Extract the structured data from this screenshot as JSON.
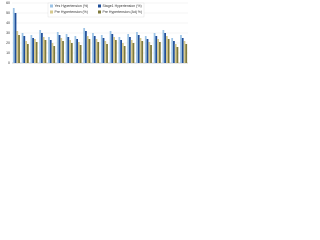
{
  "chart_data": {
    "type": "bar",
    "categories": [
      null,
      null,
      null,
      null,
      null,
      null,
      null,
      null,
      null,
      null,
      null,
      null,
      null,
      null,
      null,
      null,
      null,
      null,
      null,
      null
    ],
    "series": [
      {
        "name": "Yes Hypertension (%)",
        "color": "#9cc3e6",
        "values": [
          55,
          30,
          28,
          33,
          26,
          31,
          29,
          27,
          35,
          30,
          28,
          32,
          26,
          29,
          31,
          27,
          30,
          33,
          25,
          28
        ]
      },
      {
        "name": "Stage1 Hypertension (%)",
        "color": "#1f4e99",
        "values": [
          50,
          27,
          25,
          30,
          23,
          28,
          26,
          24,
          32,
          27,
          25,
          29,
          23,
          26,
          28,
          24,
          27,
          30,
          22,
          25
        ]
      },
      {
        "name": "Pre Hypertension (%)",
        "color": "#d6c98f",
        "values": [
          32,
          22,
          24,
          26,
          20,
          25,
          23,
          21,
          27,
          24,
          22,
          26,
          20,
          23,
          25,
          21,
          24,
          27,
          19,
          22
        ]
      },
      {
        "name": "Pre Hypertension (Adj %)",
        "color": "#7f7a3c",
        "values": [
          28,
          19,
          21,
          23,
          17,
          22,
          20,
          18,
          24,
          21,
          19,
          23,
          17,
          20,
          22,
          18,
          21,
          24,
          16,
          19
        ]
      }
    ],
    "ylim": [
      0,
      60
    ],
    "yticks": [
      0,
      10,
      20,
      30,
      40,
      50,
      60
    ],
    "grid": true,
    "legend": "top"
  }
}
